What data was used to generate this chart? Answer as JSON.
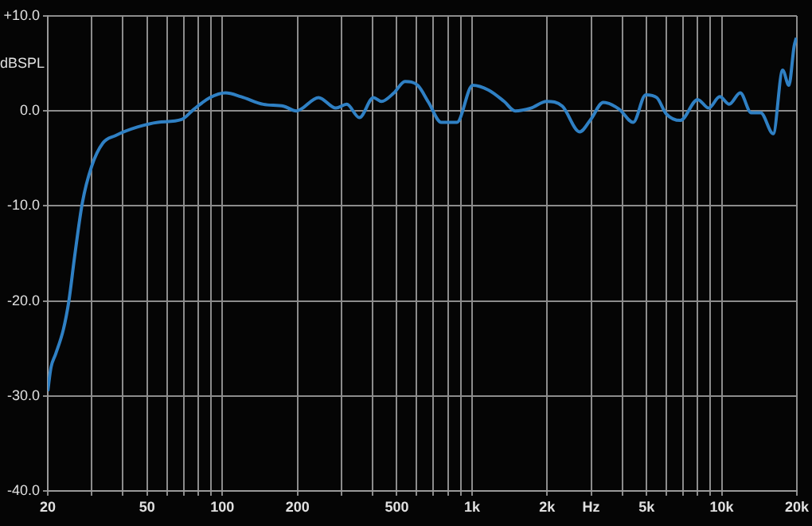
{
  "chart_data": {
    "type": "line",
    "ylabel": "dBSPL",
    "log": "x",
    "x": [
      20,
      20.6,
      21.5,
      23.1,
      24.3,
      25.6,
      27.5,
      30,
      33.2,
      37.3,
      45.7,
      55.2,
      68.7,
      77.1,
      89.2,
      103,
      119,
      146,
      176,
      198,
      243,
      285,
      315,
      354,
      403,
      434,
      487,
      539,
      606,
      670,
      753,
      870,
      1006,
      1164,
      1345,
      1489,
      1722,
      1990,
      2301,
      2699,
      2988,
      3355,
      3879,
      4421,
      4965,
      5497,
      5997,
      6833,
      8016,
      8872,
      9823,
      10716,
      11866,
      13133,
      14330,
      16088,
      17540,
      18580,
      19500,
      19900
    ],
    "series": [
      {
        "color": "#2f80c4",
        "values": [
          -29.5,
          -27,
          -25.6,
          -23,
          -20,
          -15.4,
          -9.7,
          -5.8,
          -3.4,
          -2.6,
          -1.7,
          -1.2,
          -0.9,
          0.2,
          1.4,
          1.9,
          1.5,
          0.7,
          0.5,
          0,
          1.4,
          0.3,
          0.7,
          -0.7,
          1.4,
          1,
          1.9,
          3.1,
          2.7,
          0.9,
          -1.2,
          -1.2,
          2.7,
          2.2,
          1,
          0,
          0.3,
          1,
          0.5,
          -2.2,
          -0.9,
          0.9,
          0.2,
          -1.2,
          1.7,
          1.4,
          -0.3,
          -1,
          1.2,
          0.3,
          1.5,
          0.7,
          1.9,
          -0.2,
          -0.2,
          -2.4,
          4.3,
          2.7,
          6.8,
          7.7
        ]
      }
    ],
    "xlim": [
      20,
      20000
    ],
    "xticks": [
      20,
      {
        "value": 30,
        "label": null
      },
      {
        "value": 40,
        "label": null
      },
      50,
      {
        "value": 60,
        "label": null
      },
      {
        "value": 70,
        "label": null
      },
      {
        "value": 80,
        "label": null
      },
      {
        "value": 90,
        "label": null
      },
      100,
      200,
      {
        "value": 300,
        "label": null
      },
      {
        "value": 400,
        "label": null
      },
      500,
      {
        "value": 600,
        "label": null
      },
      {
        "value": 700,
        "label": null
      },
      {
        "value": 800,
        "label": null
      },
      {
        "value": 900,
        "label": null
      },
      {
        "value": 1000,
        "label": "1k"
      },
      {
        "value": 2000,
        "label": "2k"
      },
      {
        "value": 3000,
        "label": "Hz"
      },
      {
        "value": 4000,
        "label": null
      },
      {
        "value": 5000,
        "label": "5k"
      },
      {
        "value": 6000,
        "label": null
      },
      {
        "value": 7000,
        "label": null
      },
      {
        "value": 8000,
        "label": null
      },
      {
        "value": 9000,
        "label": null
      },
      {
        "value": 10000,
        "label": "10k"
      },
      {
        "value": 20000,
        "label": "20k"
      }
    ],
    "ylim": [
      -40,
      10
    ],
    "yticks": [
      {
        "value": -40,
        "label": "-40.0"
      },
      {
        "value": -30,
        "label": "-30.0"
      },
      {
        "value": -20,
        "label": "-20.0"
      },
      {
        "value": -10,
        "label": "-10.0"
      },
      {
        "value": 0,
        "label": "0.0"
      },
      {
        "value": 10,
        "label": "+10.0"
      }
    ],
    "grid": true,
    "legend": false,
    "marker": "none",
    "line_style": "solid"
  }
}
